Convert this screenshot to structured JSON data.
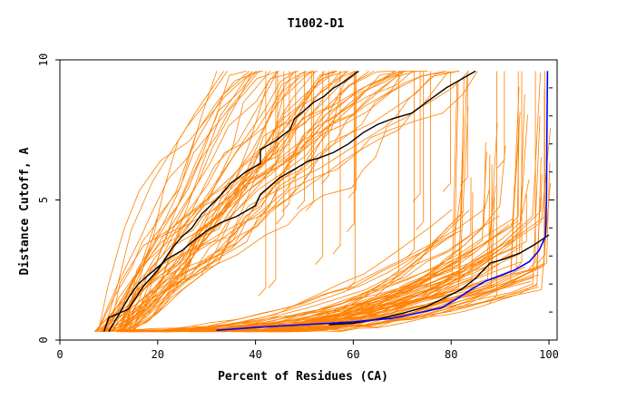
{
  "chart_data": {
    "type": "line",
    "title": "T1002-D1",
    "xlabel": "Percent of Residues (CA)",
    "ylabel": "Distance Cutoff, A",
    "xlim": [
      0,
      100
    ],
    "ylim": [
      0,
      10
    ],
    "x_ticks": [
      "0",
      "20",
      "40",
      "60",
      "80",
      "100"
    ],
    "y_ticks": [
      "0",
      "5",
      "10"
    ],
    "grid": false,
    "legend": "none",
    "colors": {
      "background_curves": "#ff8000",
      "highlight_curves": "#000000",
      "best_curve": "#0000ff"
    },
    "series": [
      {
        "color": "#000000",
        "x": [
          9,
          10,
          14,
          17,
          20,
          23,
          25,
          27,
          29,
          32,
          35,
          38,
          41,
          41,
          44,
          47,
          48,
          50,
          52,
          54,
          56,
          58,
          61
        ],
        "y": [
          0.3,
          0.8,
          1.1,
          1.9,
          2.5,
          3.3,
          3.7,
          4.0,
          4.5,
          5.0,
          5.6,
          6.0,
          6.3,
          6.8,
          7.1,
          7.5,
          7.9,
          8.2,
          8.5,
          8.7,
          9.0,
          9.2,
          9.6
        ]
      },
      {
        "color": "#000000",
        "x": [
          10,
          12,
          14,
          16,
          18,
          20,
          22,
          25,
          27,
          30,
          33,
          36,
          38,
          40,
          41,
          43,
          45,
          47,
          49,
          51,
          53,
          56,
          59,
          62,
          65,
          68,
          72,
          75,
          79,
          82,
          85
        ],
        "y": [
          0.3,
          0.9,
          1.5,
          2.0,
          2.3,
          2.6,
          2.9,
          3.2,
          3.5,
          3.9,
          4.2,
          4.4,
          4.6,
          4.8,
          5.2,
          5.5,
          5.8,
          6.0,
          6.2,
          6.4,
          6.5,
          6.7,
          7.0,
          7.4,
          7.7,
          7.9,
          8.1,
          8.5,
          9.0,
          9.3,
          9.6
        ]
      },
      {
        "color": "#000000",
        "x": [
          55,
          60,
          65,
          70,
          75,
          78,
          82,
          85,
          88,
          91,
          94,
          97,
          100
        ],
        "y": [
          0.55,
          0.6,
          0.75,
          0.95,
          1.2,
          1.45,
          1.8,
          2.2,
          2.75,
          2.9,
          3.1,
          3.4,
          3.75
        ]
      },
      {
        "color": "#0000ff",
        "x": [
          32,
          40,
          50,
          60,
          68,
          72,
          78,
          81,
          84,
          87,
          90,
          93,
          96,
          98,
          99.3,
          99.5,
          99.6,
          99.7
        ],
        "y": [
          0.35,
          0.45,
          0.55,
          0.65,
          0.78,
          0.92,
          1.15,
          1.45,
          1.8,
          2.1,
          2.3,
          2.5,
          2.8,
          3.2,
          3.7,
          5.0,
          7.5,
          9.6
        ]
      }
    ]
  }
}
